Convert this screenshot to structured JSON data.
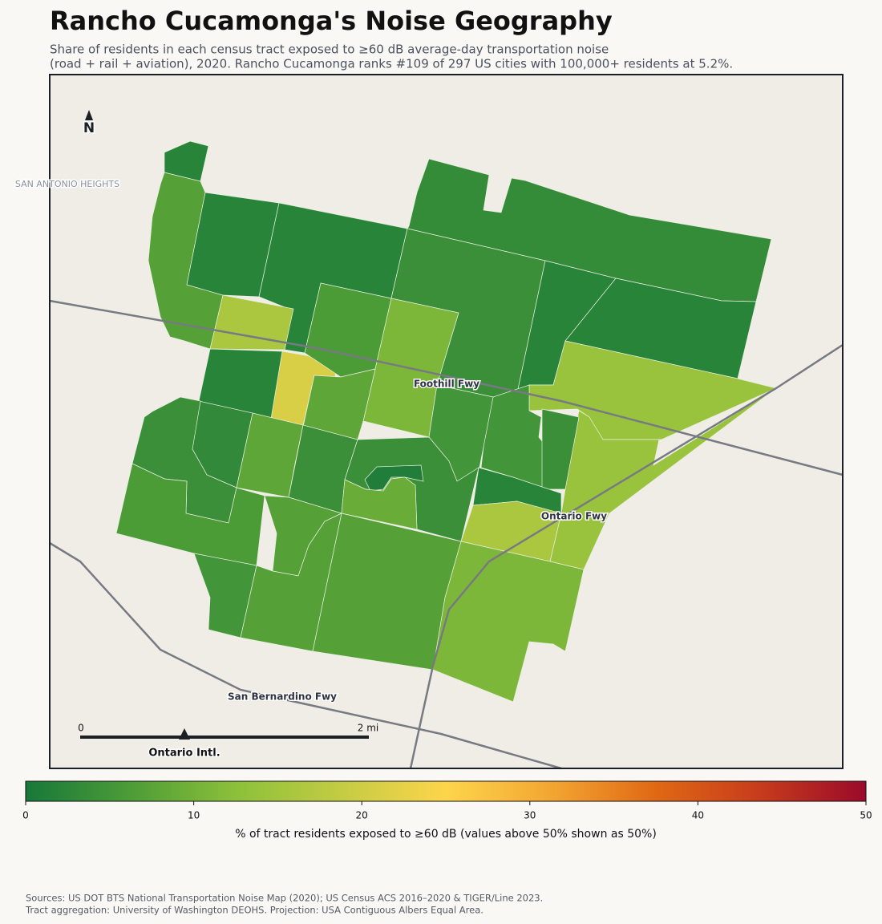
{
  "title": "Rancho Cucamonga's Noise Geography",
  "subtitle": [
    "Share of residents in each census tract exposed to ≥60 dB average-day transportation noise",
    "(road + rail + aviation), 2020. Rancho Cucamonga ranks #109 of 297 US cities with 100,000+ residents at 5.2%."
  ],
  "map": {
    "north": "N",
    "place_labels": [
      "SAN ANTONIO HEIGHTS"
    ],
    "roads": [
      "Foothill Fwy",
      "Ontario Fwy",
      "San Bernardino Fwy"
    ],
    "airport": "Ontario Intl.",
    "scale": {
      "start": "0",
      "end": "2 mi"
    },
    "tracts": [
      2,
      7,
      2,
      2,
      3.5,
      4,
      2,
      2,
      16,
      21,
      2,
      6,
      11,
      8,
      14,
      14,
      5,
      4,
      5,
      3,
      4,
      8,
      4,
      4,
      1,
      2,
      16,
      9,
      6,
      7,
      5,
      7,
      7,
      11
    ]
  },
  "colorbar": {
    "lim": [
      0,
      50
    ],
    "ticks": [
      0,
      10,
      20,
      30,
      40,
      50
    ],
    "label": "% of tract residents exposed to ≥60 dB (values above 50% shown as 50%)",
    "colors": [
      "#17783a",
      "#4d9c37",
      "#8cc03a",
      "#c3cc43",
      "#fdd54b",
      "#f3a632",
      "#e06814",
      "#c63b1c",
      "#9a0a2a"
    ]
  },
  "sources": [
    "Sources: US DOT BTS National Transportation Noise Map (2020); US Census ACS 2016–2020 & TIGER/Line 2023.",
    "Tract aggregation: University of Washington DEOHS. Projection: USA Contiguous Albers Equal Area."
  ]
}
